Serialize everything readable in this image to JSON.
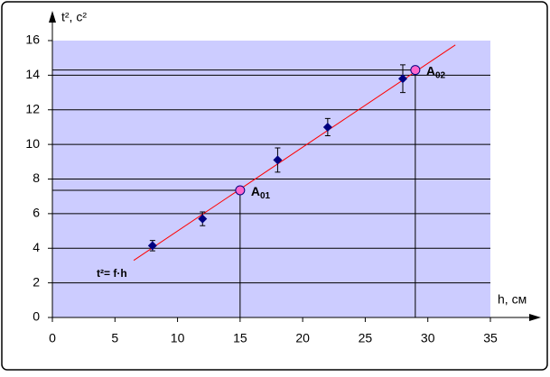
{
  "chart_data": {
    "type": "scatter",
    "ylabel": "t², с²",
    "xlabel": "h, см",
    "formula": "t²= f·h",
    "xlim": [
      0,
      35
    ],
    "ylim": [
      0,
      16
    ],
    "xticks": [
      0,
      5,
      10,
      15,
      20,
      25,
      30,
      35
    ],
    "yticks": [
      0,
      2,
      4,
      6,
      8,
      10,
      12,
      14,
      16
    ],
    "grid": true,
    "background": "#ccccff",
    "series": [
      {
        "color": "#000080",
        "x": [
          8,
          12,
          18,
          22,
          28
        ],
        "values": [
          4.15,
          5.7,
          9.1,
          11.0,
          13.8
        ],
        "errors": [
          0.3,
          0.4,
          0.7,
          0.5,
          0.8
        ]
      }
    ],
    "trend": {
      "color": "#ff0000",
      "x": [
        6.5,
        32.2
      ],
      "values": [
        3.3,
        15.75
      ]
    },
    "points": [
      {
        "label": "A",
        "sub": "01",
        "x": 15,
        "y": 7.35,
        "color": "#ff66cc"
      },
      {
        "label": "A",
        "sub": "02",
        "x": 29,
        "y": 14.3,
        "color": "#ff66cc"
      }
    ]
  }
}
